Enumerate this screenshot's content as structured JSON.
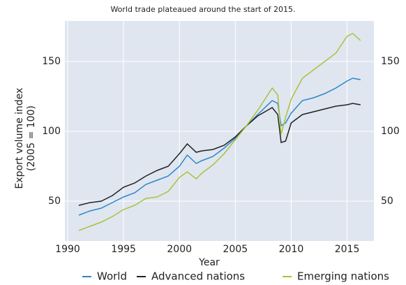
{
  "chart_data": {
    "type": "line",
    "subtitle": "World trade plateaued around the start of 2015.",
    "xlabel": "Year",
    "ylabel": [
      "Export volume index",
      "(2005 = 100)"
    ],
    "x": [
      1991,
      1992,
      1993,
      1994,
      1995,
      1996,
      1997,
      1998,
      1999,
      2000,
      2000.7,
      2001.5,
      2002,
      2003,
      2004,
      2005,
      2006,
      2007,
      2008.3,
      2008.8,
      2009.1,
      2009.5,
      2010,
      2011,
      2012,
      2013,
      2014,
      2015,
      2015.5,
      2016.2
    ],
    "series": [
      {
        "name": "World",
        "color": "#2f86c8",
        "values": [
          40,
          43,
          45,
          49,
          53,
          56,
          62,
          65,
          68,
          75,
          83,
          77,
          79,
          82,
          88,
          95,
          104,
          112,
          122,
          120,
          104,
          106,
          113,
          122,
          124,
          127,
          131,
          136,
          138,
          137
        ]
      },
      {
        "name": "Advanced nations",
        "color": "#222222",
        "values": [
          47,
          49,
          50,
          54,
          60,
          63,
          68,
          72,
          75,
          84,
          91,
          85,
          86,
          87,
          90,
          96,
          104,
          111,
          117,
          112,
          92,
          93,
          106,
          112,
          114,
          116,
          118,
          119,
          120,
          119
        ]
      },
      {
        "name": "Emerging nations",
        "color": "#a9c23a",
        "values": [
          29,
          32,
          35,
          39,
          44,
          47,
          52,
          53,
          57,
          67,
          71,
          66,
          70,
          76,
          84,
          94,
          104,
          115,
          131,
          126,
          98,
          110,
          123,
          138,
          144,
          150,
          156,
          168,
          170,
          165
        ]
      }
    ],
    "xlim": [
      1989.75,
      2017.4
    ],
    "xticks": [
      1990,
      1995,
      2000,
      2005,
      2010,
      2015
    ],
    "ylim": [
      21.5,
      179
    ],
    "yticks": [
      50,
      100,
      150
    ],
    "y2lim": [
      21.5,
      179
    ],
    "y2ticks": [
      50,
      100,
      150
    ],
    "grid": true,
    "legend": "bottom"
  }
}
